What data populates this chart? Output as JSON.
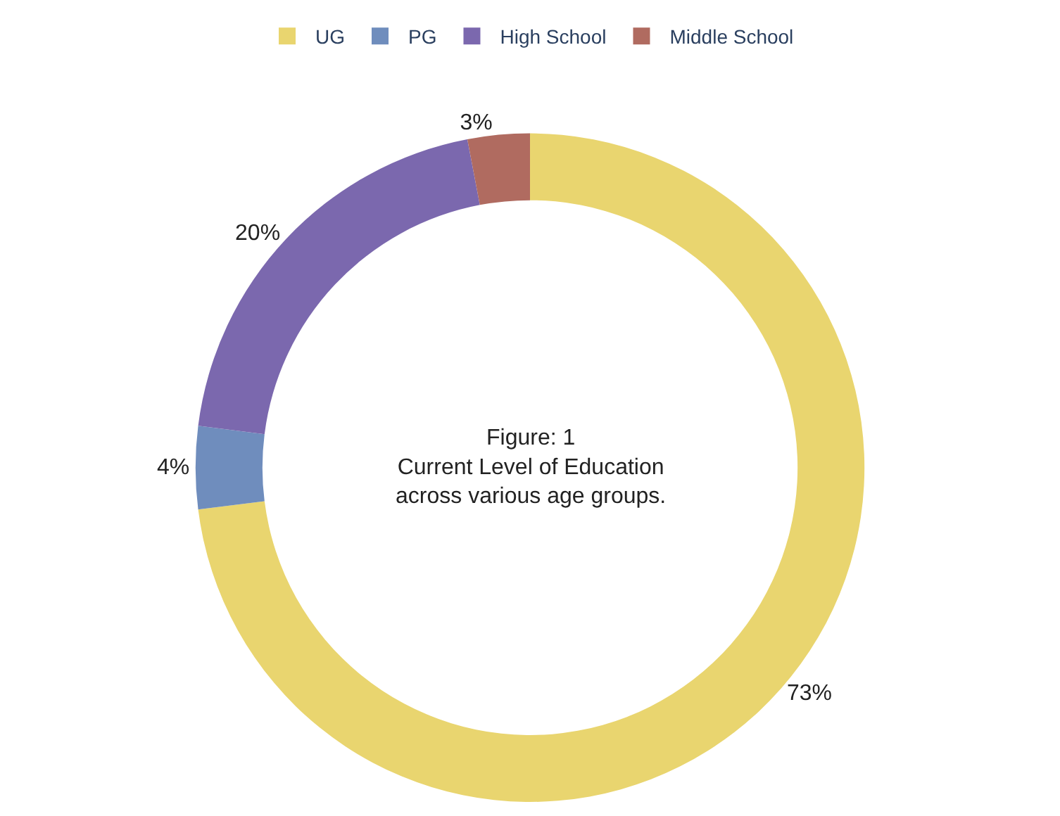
{
  "chart_data": {
    "type": "donut",
    "categories": [
      "UG",
      "PG",
      "High School",
      "Middle School"
    ],
    "values": [
      73,
      4,
      20,
      3
    ],
    "colors": [
      "#e9d56f",
      "#6f8dbd",
      "#7b68ae",
      "#b06b60"
    ],
    "value_labels": [
      "73%",
      "4%",
      "20%",
      "3%"
    ],
    "annotations": [
      "Figure: 1\nCurrent Level of Education\nacross various age groups."
    ],
    "legend": "top"
  }
}
